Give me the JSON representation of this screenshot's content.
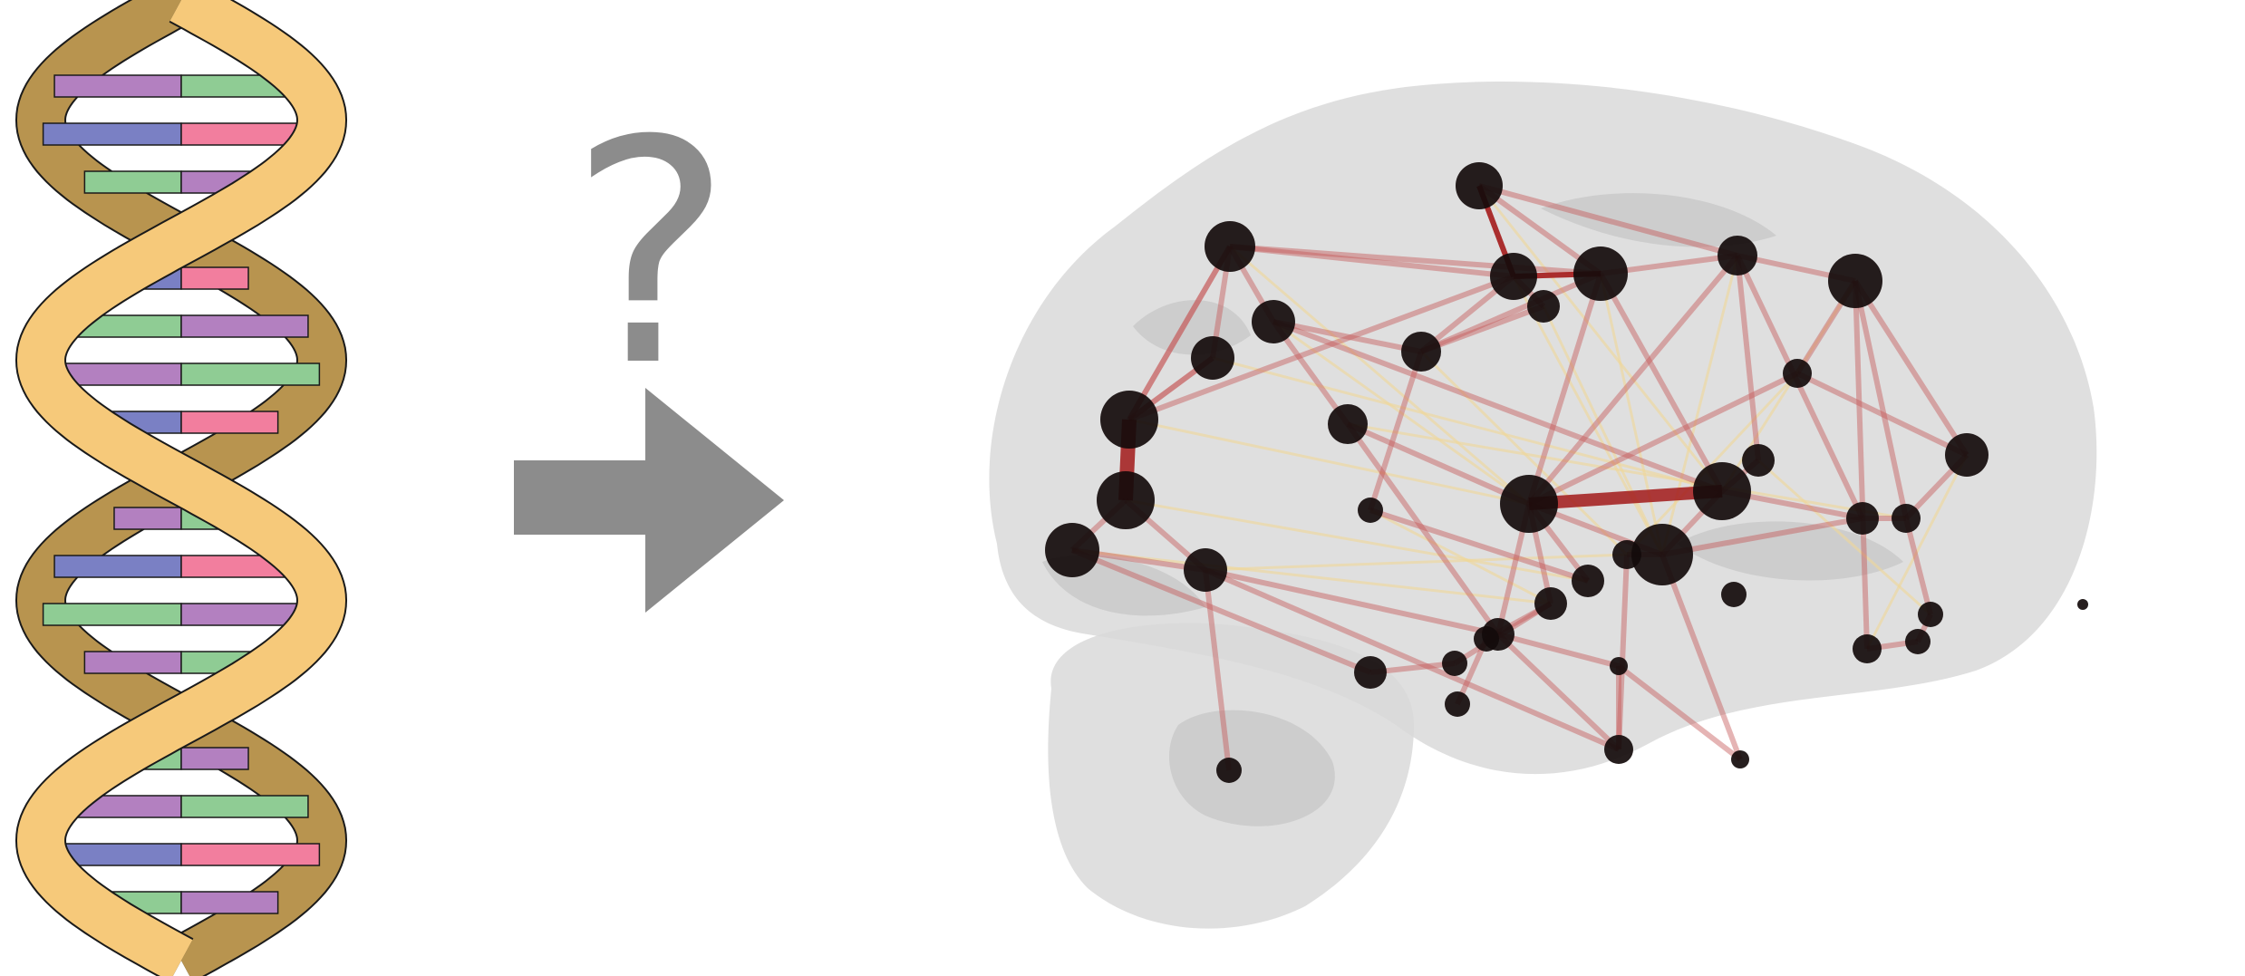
{
  "figure": {
    "question_mark": "?",
    "colors": {
      "backbone": "#f6c97a",
      "backbone_back": "#b8944f",
      "outline": "#1a1a1a",
      "base_purple": "#b380c0",
      "base_green": "#8fcc94",
      "base_blue": "#7a80c4",
      "base_pink": "#f27e9e",
      "arrow": "#8c8c8c",
      "brain": "#d9d9d9",
      "brain_dark": "#c4c4c4",
      "edge_strong": "#a31a1a",
      "edge": "#c65a5a",
      "edge_weak": "#f0d898",
      "node": "#140b0b"
    },
    "icons": [
      "dna-double-helix",
      "right-arrow",
      "brain-network"
    ]
  }
}
